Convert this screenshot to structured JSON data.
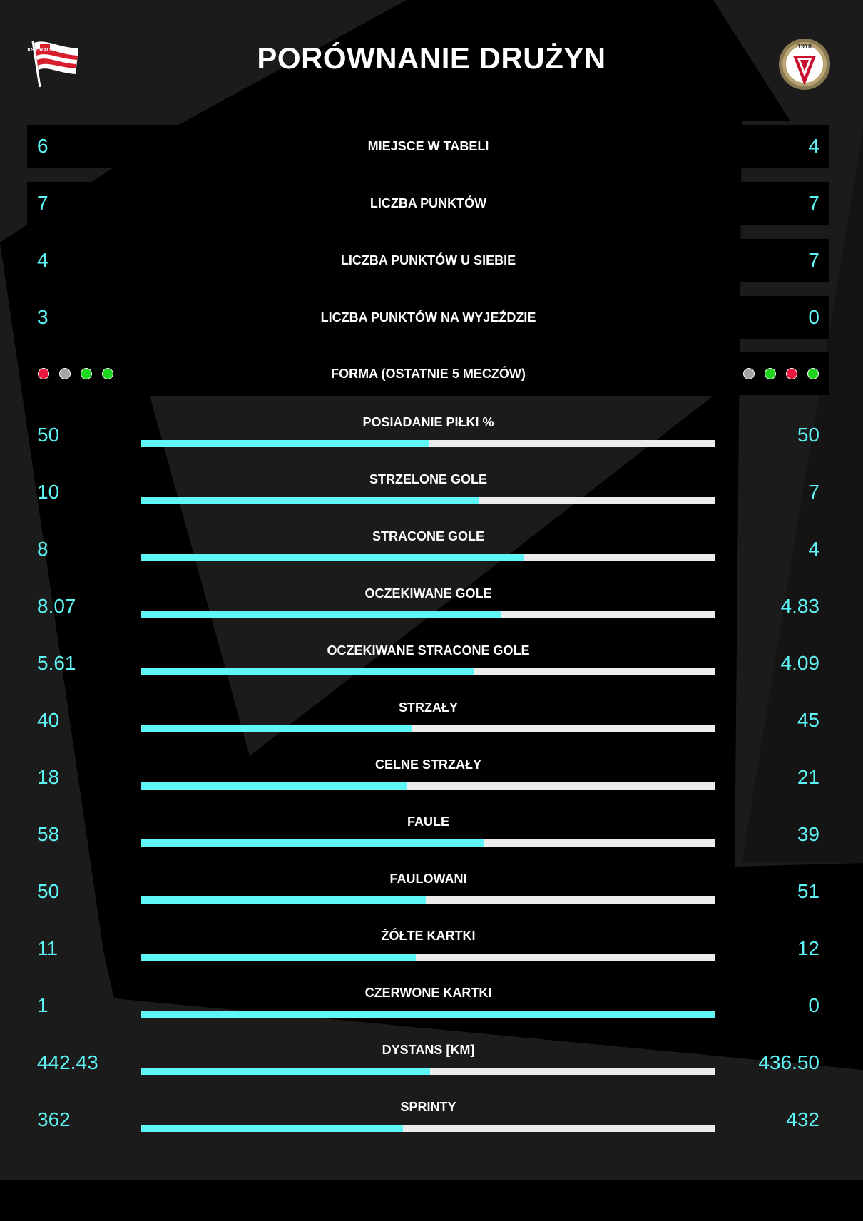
{
  "title": "PORÓWNANIE DRUŻYN",
  "home_team": {
    "logo_icon": "cracovia-crest-icon",
    "logo_text": "KS CRACOVIA"
  },
  "away_team": {
    "logo_icon": "widzew-crest-icon",
    "logo_text": "1910"
  },
  "colors": {
    "accent": "#5ef6f6",
    "bar_track": "#ececec",
    "win": "#1ed61e",
    "loss": "#e8193c",
    "draw": "#a5a5a5"
  },
  "summary_rows": [
    {
      "label": "MIEJSCE W TABELI",
      "home": "6",
      "away": "4"
    },
    {
      "label": "LICZBA PUNKTÓW",
      "home": "7",
      "away": "7"
    },
    {
      "label": "LICZBA PUNKTÓW U SIEBIE",
      "home": "4",
      "away": "7"
    },
    {
      "label": "LICZBA PUNKTÓW NA WYJEŹDZIE",
      "home": "3",
      "away": "0"
    }
  ],
  "form": {
    "label": "FORMA (OSTATNIE 5 MECZÓW)",
    "home": [
      "loss",
      "draw",
      "win",
      "win"
    ],
    "away": [
      "draw",
      "win",
      "loss",
      "win"
    ]
  },
  "stats": [
    {
      "label": "POSIADANIE PIŁKI %",
      "home": "50",
      "away": "50"
    },
    {
      "label": "STRZELONE GOLE",
      "home": "10",
      "away": "7"
    },
    {
      "label": "STRACONE GOLE",
      "home": "8",
      "away": "4"
    },
    {
      "label": "OCZEKIWANE GOLE",
      "home": "8.07",
      "away": "4.83"
    },
    {
      "label": "OCZEKIWANE STRACONE GOLE",
      "home": "5.61",
      "away": "4.09"
    },
    {
      "label": "STRZAŁY",
      "home": "40",
      "away": "45"
    },
    {
      "label": "CELNE STRZAŁY",
      "home": "18",
      "away": "21"
    },
    {
      "label": "FAULE",
      "home": "58",
      "away": "39"
    },
    {
      "label": "FAULOWANI",
      "home": "50",
      "away": "51"
    },
    {
      "label": "ŻÓŁTE KARTKI",
      "home": "11",
      "away": "12"
    },
    {
      "label": "CZERWONE KARTKI",
      "home": "1",
      "away": "0"
    },
    {
      "label": "DYSTANS [KM]",
      "home": "442.43",
      "away": "436.50"
    },
    {
      "label": "SPRINTY",
      "home": "362",
      "away": "432"
    }
  ]
}
